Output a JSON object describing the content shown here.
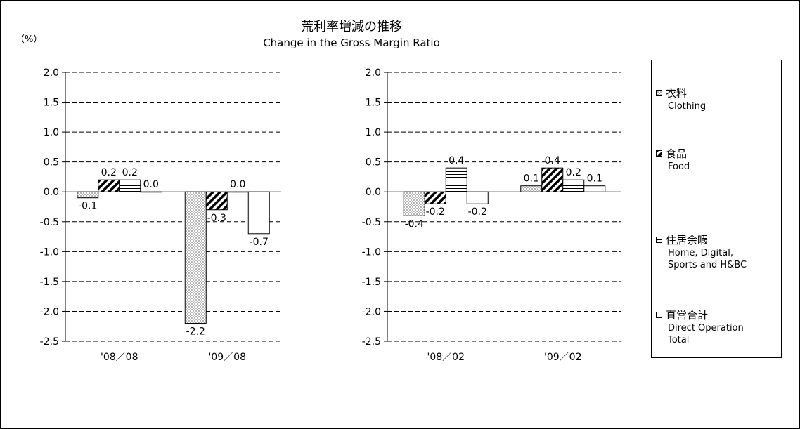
{
  "chart_data": {
    "type": "bar",
    "title": "荒利率増減の推移",
    "subtitle": "Change in the Gross Margin Ratio",
    "ylabel": "（%）",
    "ylim": [
      -2.5,
      2.0
    ],
    "yticks": [
      "2.0",
      "1.5",
      "1.0",
      "0.5",
      "0.0",
      "-0.5",
      "-1.0",
      "-1.5",
      "-2.0",
      "-2.5"
    ],
    "grid": true,
    "legend_position": "right",
    "series": [
      {
        "name_ja": "衣料",
        "name": "Clothing",
        "pattern": "dots"
      },
      {
        "name_ja": "食品",
        "name": "Food",
        "pattern": "diagonal"
      },
      {
        "name_ja": "住居余暇",
        "name": "Home, Digital,\nSports and H&BC",
        "pattern": "horizontal"
      },
      {
        "name_ja": "直営合計",
        "name": "Direct Operation\nTotal",
        "pattern": "plain"
      }
    ],
    "panels": [
      {
        "categories": [
          "'08／08",
          "'09／08"
        ],
        "values": [
          [
            -0.1,
            0.2,
            0.2,
            0.0
          ],
          [
            -2.2,
            -0.3,
            0.0,
            -0.7
          ]
        ],
        "labels": [
          [
            "-0.1",
            "0.2",
            "0.2",
            "0.0"
          ],
          [
            "-2.2",
            "-0.3",
            "0.0",
            "-0.7"
          ]
        ]
      },
      {
        "categories": [
          "'08／02",
          "'09／02"
        ],
        "values": [
          [
            -0.4,
            -0.2,
            0.4,
            -0.2
          ],
          [
            0.1,
            0.4,
            0.2,
            0.1
          ]
        ],
        "labels": [
          [
            "-0.4",
            "-0.2",
            "0.4",
            "-0.2"
          ],
          [
            "0.1",
            "0.4",
            "0.2",
            "0.1"
          ]
        ]
      }
    ],
    "colors": {
      "bar_stroke": "#000000",
      "bar_fill": "#ffffff",
      "grid": "#000000"
    }
  }
}
